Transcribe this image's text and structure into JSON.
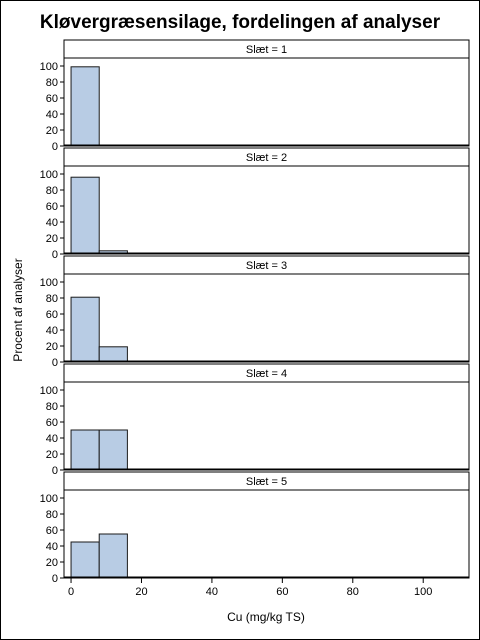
{
  "chart_data": {
    "type": "bar",
    "title": "Kløvergræsensilage, fordelingen af analyser",
    "xlabel": "Cu (mg/kg TS)",
    "ylabel": "Procent af analyser",
    "xlim": [
      -2,
      113
    ],
    "ylim": [
      0,
      110
    ],
    "x_ticks": [
      0,
      20,
      40,
      60,
      80,
      100
    ],
    "y_ticks": [
      0,
      20,
      40,
      60,
      80,
      100
    ],
    "bin_width": 8,
    "bar_fill": "#b8cce4",
    "bar_stroke": "#1a1a1a",
    "panels": [
      {
        "label": "Slæt = 1",
        "bins": [
          {
            "start": 0,
            "value": 99
          },
          {
            "start": 16,
            "value": 0.7
          },
          {
            "start": 104,
            "value": 0.7
          }
        ]
      },
      {
        "label": "Slæt = 2",
        "bins": [
          {
            "start": 0,
            "value": 96
          },
          {
            "start": 8,
            "value": 4
          }
        ]
      },
      {
        "label": "Slæt = 3",
        "bins": [
          {
            "start": 0,
            "value": 81
          },
          {
            "start": 8,
            "value": 19
          }
        ]
      },
      {
        "label": "Slæt = 4",
        "bins": [
          {
            "start": 0,
            "value": 50
          },
          {
            "start": 8,
            "value": 50
          }
        ]
      },
      {
        "label": "Slæt = 5",
        "bins": [
          {
            "start": 0,
            "value": 45
          },
          {
            "start": 8,
            "value": 55
          }
        ]
      }
    ]
  }
}
